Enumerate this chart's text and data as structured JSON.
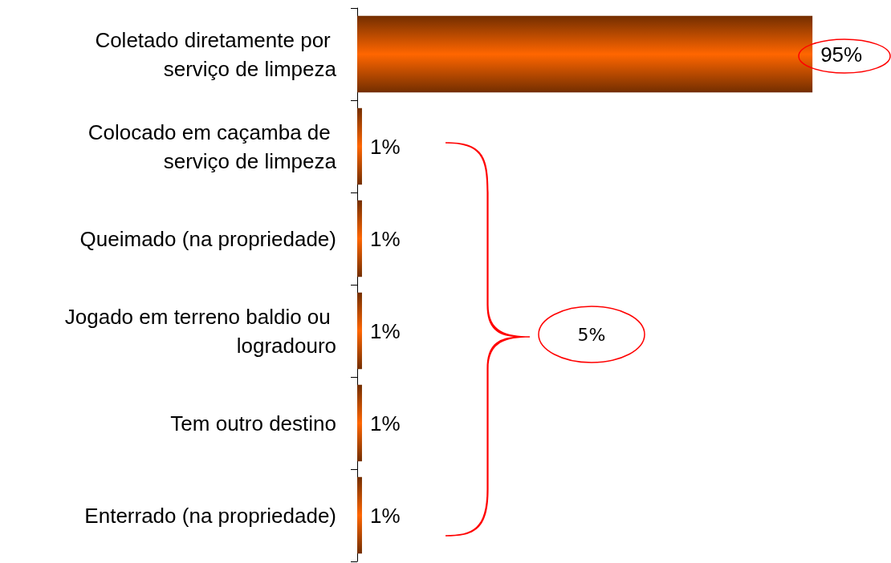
{
  "chart_data": {
    "type": "bar",
    "orientation": "horizontal",
    "categories": [
      "Coletado diretamente por serviço de limpeza",
      "Colocado em caçamba de serviço de limpeza",
      "Queimado (na propriedade)",
      "Jogado em terreno baldio ou logradouro",
      "Tem outro destino",
      "Enterrado (na propriedade)"
    ],
    "values": [
      95,
      1,
      1,
      1,
      1,
      1
    ],
    "value_labels": [
      "95%",
      "1%",
      "1%",
      "1%",
      "1%",
      "1%"
    ],
    "color": "#ff6600",
    "annotations": [
      "5%"
    ],
    "tick_labels": "y"
  }
}
